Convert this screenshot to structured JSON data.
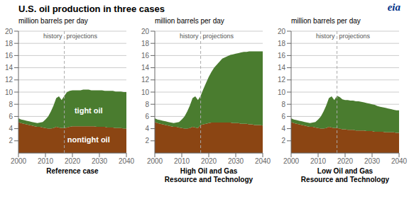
{
  "chart_data": [
    {
      "type": "area",
      "title": "U.S. oil production in three cases",
      "annotations": [
        "eia"
      ],
      "xlabel": "Reference case",
      "ylabel": "million barrels per day",
      "stacked": true,
      "grid": true,
      "x": [
        2000,
        2001,
        2002,
        2003,
        2004,
        2005,
        2006,
        2007,
        2008,
        2009,
        2010,
        2011,
        2012,
        2013,
        2014,
        2015,
        2016,
        2017,
        2018,
        2019,
        2020,
        2021,
        2022,
        2023,
        2024,
        2025,
        2026,
        2027,
        2028,
        2029,
        2030,
        2031,
        2032,
        2033,
        2034,
        2035,
        2036,
        2037,
        2038,
        2039,
        2040
      ],
      "xlim": [
        2000,
        2040
      ],
      "xticks": [
        2000,
        2010,
        2020,
        2030,
        2040
      ],
      "ylim": [
        0,
        20
      ],
      "yticks": [
        2,
        4,
        6,
        8,
        10,
        12,
        14,
        16,
        18,
        20
      ],
      "vline": 2017,
      "vline_labels": [
        "history",
        "projections"
      ],
      "series": [
        {
          "name": "nontight oil",
          "color": "#8B4513",
          "values": [
            5.1,
            4.9,
            4.8,
            4.7,
            4.6,
            4.5,
            4.4,
            4.3,
            4.3,
            4.2,
            4.1,
            4.0,
            4.0,
            4.1,
            4.3,
            4.2,
            4.1,
            4.1,
            4.2,
            4.3,
            4.4,
            4.4,
            4.4,
            4.4,
            4.4,
            4.4,
            4.4,
            4.4,
            4.4,
            4.3,
            4.3,
            4.3,
            4.3,
            4.2,
            4.2,
            4.2,
            4.1,
            4.1,
            4.1,
            4.0,
            4.0
          ]
        },
        {
          "name": "tight oil",
          "color": "#4a7c2f",
          "values": [
            0.6,
            0.6,
            0.6,
            0.6,
            0.6,
            0.6,
            0.6,
            0.6,
            0.7,
            0.9,
            1.4,
            2.0,
            2.8,
            3.7,
            4.7,
            5.1,
            4.6,
            5.3,
            5.8,
            5.9,
            5.9,
            5.9,
            5.9,
            5.9,
            6.0,
            6.0,
            6.0,
            5.9,
            5.9,
            6.0,
            6.0,
            6.0,
            5.9,
            6.0,
            6.0,
            6.0,
            6.0,
            6.0,
            6.0,
            6.0,
            6.0
          ]
        }
      ]
    },
    {
      "type": "area",
      "xlabel": "High Oil and Gas\nResource and Technology",
      "ylabel": "million barrels per day",
      "stacked": true,
      "grid": true,
      "x": [
        2000,
        2001,
        2002,
        2003,
        2004,
        2005,
        2006,
        2007,
        2008,
        2009,
        2010,
        2011,
        2012,
        2013,
        2014,
        2015,
        2016,
        2017,
        2018,
        2019,
        2020,
        2021,
        2022,
        2023,
        2024,
        2025,
        2026,
        2027,
        2028,
        2029,
        2030,
        2031,
        2032,
        2033,
        2034,
        2035,
        2036,
        2037,
        2038,
        2039,
        2040
      ],
      "xlim": [
        2000,
        2040
      ],
      "xticks": [
        2000,
        2010,
        2020,
        2030,
        2040
      ],
      "ylim": [
        0,
        20
      ],
      "yticks": [
        2,
        4,
        6,
        8,
        10,
        12,
        14,
        16,
        18,
        20
      ],
      "vline": 2017,
      "vline_labels": [
        "history",
        "projections"
      ],
      "series": [
        {
          "color": "#8B4513",
          "values": [
            5.1,
            4.9,
            4.8,
            4.7,
            4.6,
            4.5,
            4.4,
            4.3,
            4.3,
            4.2,
            4.1,
            4.0,
            4.0,
            4.1,
            4.3,
            4.2,
            4.1,
            4.6,
            4.7,
            4.8,
            4.9,
            5.0,
            5.0,
            5.0,
            5.0,
            5.0,
            5.0,
            5.0,
            5.0,
            4.9,
            4.9,
            4.9,
            4.8,
            4.8,
            4.8,
            4.7,
            4.7,
            4.6,
            4.6,
            4.6,
            4.5
          ]
        },
        {
          "color": "#4a7c2f",
          "values": [
            0.6,
            0.6,
            0.6,
            0.6,
            0.6,
            0.6,
            0.6,
            0.6,
            0.7,
            0.9,
            1.4,
            2.0,
            2.8,
            3.7,
            4.7,
            5.1,
            4.6,
            4.8,
            5.8,
            6.7,
            7.6,
            8.3,
            9.0,
            9.5,
            10.0,
            10.5,
            10.7,
            10.9,
            11.1,
            11.3,
            11.4,
            11.5,
            11.7,
            11.8,
            11.8,
            12.0,
            12.0,
            12.1,
            12.1,
            12.1,
            12.2
          ]
        }
      ]
    },
    {
      "type": "area",
      "xlabel": "Low Oil and Gas\nResource and Technology",
      "ylabel": "million barrels per day",
      "stacked": true,
      "grid": true,
      "x": [
        2000,
        2001,
        2002,
        2003,
        2004,
        2005,
        2006,
        2007,
        2008,
        2009,
        2010,
        2011,
        2012,
        2013,
        2014,
        2015,
        2016,
        2017,
        2018,
        2019,
        2020,
        2021,
        2022,
        2023,
        2024,
        2025,
        2026,
        2027,
        2028,
        2029,
        2030,
        2031,
        2032,
        2033,
        2034,
        2035,
        2036,
        2037,
        2038,
        2039,
        2040
      ],
      "xlim": [
        2000,
        2040
      ],
      "xticks": [
        2000,
        2010,
        2020,
        2030,
        2040
      ],
      "ylim": [
        0,
        20
      ],
      "yticks": [
        2,
        4,
        6,
        8,
        10,
        12,
        14,
        16,
        18,
        20
      ],
      "vline": 2017,
      "vline_labels": [
        "history",
        "projections"
      ],
      "series": [
        {
          "color": "#8B4513",
          "values": [
            5.1,
            4.9,
            4.8,
            4.7,
            4.6,
            4.5,
            4.4,
            4.3,
            4.3,
            4.2,
            4.1,
            4.0,
            4.0,
            4.1,
            4.3,
            4.2,
            4.1,
            4.1,
            4.0,
            3.9,
            3.9,
            3.8,
            3.8,
            3.8,
            3.7,
            3.7,
            3.7,
            3.7,
            3.6,
            3.6,
            3.6,
            3.5,
            3.5,
            3.5,
            3.5,
            3.4,
            3.4,
            3.4,
            3.4,
            3.3,
            3.3
          ]
        },
        {
          "color": "#4a7c2f",
          "values": [
            0.6,
            0.6,
            0.6,
            0.6,
            0.6,
            0.6,
            0.6,
            0.6,
            0.7,
            0.9,
            1.4,
            2.0,
            2.8,
            3.7,
            4.7,
            5.1,
            4.6,
            5.3,
            5.2,
            4.9,
            4.8,
            4.9,
            4.8,
            4.8,
            4.8,
            4.8,
            4.7,
            4.6,
            4.6,
            4.5,
            4.4,
            4.4,
            4.2,
            4.1,
            4.0,
            4.0,
            3.9,
            3.8,
            3.7,
            3.7,
            3.7
          ]
        }
      ]
    }
  ]
}
